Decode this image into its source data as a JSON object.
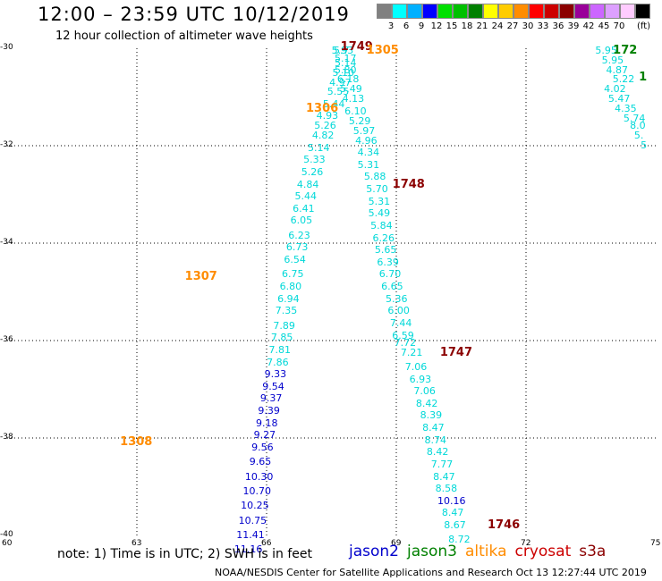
{
  "header": {
    "title": "12:00 – 23:59 UTC 10/12/2019",
    "subtitle": "12 hour collection of altimeter wave heights"
  },
  "colorbar": {
    "colors": [
      "#808080",
      "#00ffff",
      "#00b0ff",
      "#0000ff",
      "#00e000",
      "#00c000",
      "#008000",
      "#ffff00",
      "#ffcc00",
      "#ff8c00",
      "#ff0000",
      "#cc0000",
      "#8b0000",
      "#990099",
      "#cc66ff",
      "#dda0ff",
      "#ffccff",
      "#000000"
    ],
    "ticks": [
      "3",
      "6",
      "9",
      "12",
      "15",
      "18",
      "21",
      "24",
      "27",
      "30",
      "33",
      "36",
      "39",
      "42",
      "45",
      "70"
    ],
    "unit": "(ft)"
  },
  "map": {
    "lon_ticks": [
      "60",
      "63",
      "66",
      "69",
      "72",
      "75"
    ],
    "lat_ticks": [
      "-30",
      "-32",
      "-34",
      "-36",
      "-38",
      "-40"
    ],
    "lon_range": [
      60,
      75
    ],
    "lat_range": [
      -40,
      -30
    ],
    "grid": "dotted",
    "pass_labels": [
      {
        "text": "1749",
        "lon": 68.0,
        "lat": -29.98,
        "color": "#8b0000"
      },
      {
        "text": "1305",
        "lon": 68.6,
        "lat": -30.05,
        "color": "#ff8c00"
      },
      {
        "text": "1306",
        "lon": 67.2,
        "lat": -31.25,
        "color": "#ff8c00"
      },
      {
        "text": "1748",
        "lon": 69.2,
        "lat": -32.8,
        "color": "#8b0000"
      },
      {
        "text": "1307",
        "lon": 64.4,
        "lat": -34.7,
        "color": "#ff8c00"
      },
      {
        "text": "1747",
        "lon": 70.3,
        "lat": -36.25,
        "color": "#8b0000"
      },
      {
        "text": "1308",
        "lon": 62.9,
        "lat": -38.1,
        "color": "#ff8c00"
      },
      {
        "text": "1746",
        "lon": 71.4,
        "lat": -39.8,
        "color": "#8b0000"
      },
      {
        "text": "172",
        "lon": 74.3,
        "lat": -30.05,
        "color": "#008000"
      },
      {
        "text": "1",
        "lon": 74.9,
        "lat": -30.6,
        "color": "#008000"
      }
    ],
    "swh_points": [
      {
        "v": "5.93",
        "lon": 67.75,
        "lat": -30.05,
        "color": "#00d8d8"
      },
      {
        "v": "5.7",
        "lon": 67.8,
        "lat": -30.05,
        "color": "#00d8d8"
      },
      {
        "v": "5.17",
        "lon": 67.82,
        "lat": -30.22,
        "color": "#00d8d8"
      },
      {
        "v": "5.14",
        "lon": 67.82,
        "lat": -30.32,
        "color": "#00d8d8"
      },
      {
        "v": "5.80",
        "lon": 67.82,
        "lat": -30.45,
        "color": "#00d8d8"
      },
      {
        "v": "5.10",
        "lon": 67.77,
        "lat": -30.52,
        "color": "#00d8d8"
      },
      {
        "v": "6.18",
        "lon": 67.88,
        "lat": -30.65,
        "color": "#00d8d8"
      },
      {
        "v": "4.97",
        "lon": 67.7,
        "lat": -30.72,
        "color": "#00d8d8"
      },
      {
        "v": "5.49",
        "lon": 67.95,
        "lat": -30.85,
        "color": "#00d8d8"
      },
      {
        "v": "5.55",
        "lon": 67.65,
        "lat": -30.9,
        "color": "#00d8d8"
      },
      {
        "v": "4.13",
        "lon": 68.0,
        "lat": -31.05,
        "color": "#00d8d8"
      },
      {
        "v": "5.44",
        "lon": 67.55,
        "lat": -31.15,
        "color": "#00d8d8"
      },
      {
        "v": "6.10",
        "lon": 68.05,
        "lat": -31.3,
        "color": "#00d8d8"
      },
      {
        "v": "4.93",
        "lon": 67.4,
        "lat": -31.4,
        "color": "#00d8d8"
      },
      {
        "v": "5.29",
        "lon": 68.15,
        "lat": -31.5,
        "color": "#00d8d8"
      },
      {
        "v": "5.26",
        "lon": 67.35,
        "lat": -31.6,
        "color": "#00d8d8"
      },
      {
        "v": "5.97",
        "lon": 68.25,
        "lat": -31.7,
        "color": "#00d8d8"
      },
      {
        "v": "4.82",
        "lon": 67.3,
        "lat": -31.8,
        "color": "#00d8d8"
      },
      {
        "v": "4.96",
        "lon": 68.3,
        "lat": -31.9,
        "color": "#00d8d8"
      },
      {
        "v": "5.14",
        "lon": 67.2,
        "lat": -32.05,
        "color": "#00d8d8"
      },
      {
        "v": "4.34",
        "lon": 68.35,
        "lat": -32.15,
        "color": "#00d8d8"
      },
      {
        "v": "5.33",
        "lon": 67.1,
        "lat": -32.3,
        "color": "#00d8d8"
      },
      {
        "v": "5.31",
        "lon": 68.35,
        "lat": -32.4,
        "color": "#00d8d8"
      },
      {
        "v": "5.26",
        "lon": 67.05,
        "lat": -32.55,
        "color": "#00d8d8"
      },
      {
        "v": "5.88",
        "lon": 68.5,
        "lat": -32.65,
        "color": "#00d8d8"
      },
      {
        "v": "4.84",
        "lon": 66.95,
        "lat": -32.8,
        "color": "#00d8d8"
      },
      {
        "v": "5.70",
        "lon": 68.55,
        "lat": -32.9,
        "color": "#00d8d8"
      },
      {
        "v": "5.44",
        "lon": 66.9,
        "lat": -33.05,
        "color": "#00d8d8"
      },
      {
        "v": "5.31",
        "lon": 68.6,
        "lat": -33.15,
        "color": "#00d8d8"
      },
      {
        "v": "6.41",
        "lon": 66.85,
        "lat": -33.3,
        "color": "#00d8d8"
      },
      {
        "v": "5.49",
        "lon": 68.6,
        "lat": -33.4,
        "color": "#00d8d8"
      },
      {
        "v": "6.05",
        "lon": 66.8,
        "lat": -33.55,
        "color": "#00d8d8"
      },
      {
        "v": "5.84",
        "lon": 68.65,
        "lat": -33.65,
        "color": "#00d8d8"
      },
      {
        "v": "6.23",
        "lon": 66.75,
        "lat": -33.85,
        "color": "#00d8d8"
      },
      {
        "v": "6.26",
        "lon": 68.7,
        "lat": -33.9,
        "color": "#00d8d8"
      },
      {
        "v": "6.73",
        "lon": 66.7,
        "lat": -34.1,
        "color": "#00d8d8"
      },
      {
        "v": "5.65",
        "lon": 68.75,
        "lat": -34.15,
        "color": "#00d8d8"
      },
      {
        "v": "6.54",
        "lon": 66.65,
        "lat": -34.35,
        "color": "#00d8d8"
      },
      {
        "v": "6.39",
        "lon": 68.8,
        "lat": -34.4,
        "color": "#00d8d8"
      },
      {
        "v": "6.75",
        "lon": 66.6,
        "lat": -34.65,
        "color": "#00d8d8"
      },
      {
        "v": "6.70",
        "lon": 68.85,
        "lat": -34.65,
        "color": "#00d8d8"
      },
      {
        "v": "6.80",
        "lon": 66.55,
        "lat": -34.9,
        "color": "#00d8d8"
      },
      {
        "v": "6.65",
        "lon": 68.9,
        "lat": -34.9,
        "color": "#00d8d8"
      },
      {
        "v": "6.94",
        "lon": 66.5,
        "lat": -35.15,
        "color": "#00d8d8"
      },
      {
        "v": "5.36",
        "lon": 69.0,
        "lat": -35.15,
        "color": "#00d8d8"
      },
      {
        "v": "7.35",
        "lon": 66.45,
        "lat": -35.4,
        "color": "#00d8d8"
      },
      {
        "v": "6.00",
        "lon": 69.05,
        "lat": -35.4,
        "color": "#00d8d8"
      },
      {
        "v": "7.89",
        "lon": 66.4,
        "lat": -35.7,
        "color": "#00d8d8"
      },
      {
        "v": "7.44",
        "lon": 69.1,
        "lat": -35.65,
        "color": "#00d8d8"
      },
      {
        "v": "7.85",
        "lon": 66.35,
        "lat": -35.95,
        "color": "#00d8d8"
      },
      {
        "v": "6.59",
        "lon": 69.15,
        "lat": -35.9,
        "color": "#00d8d8"
      },
      {
        "v": "7.81",
        "lon": 66.3,
        "lat": -36.2,
        "color": "#00d8d8"
      },
      {
        "v": "7.72",
        "lon": 69.2,
        "lat": -36.05,
        "color": "#00d8d8"
      },
      {
        "v": "7.86",
        "lon": 66.25,
        "lat": -36.45,
        "color": "#00d8d8"
      },
      {
        "v": "7.21",
        "lon": 69.35,
        "lat": -36.25,
        "color": "#00d8d8"
      },
      {
        "v": "9.33",
        "lon": 66.2,
        "lat": -36.7,
        "color": "#0000cc"
      },
      {
        "v": "7.06",
        "lon": 69.45,
        "lat": -36.55,
        "color": "#00d8d8"
      },
      {
        "v": "9.54",
        "lon": 66.15,
        "lat": -36.95,
        "color": "#0000cc"
      },
      {
        "v": "6.93",
        "lon": 69.55,
        "lat": -36.8,
        "color": "#00d8d8"
      },
      {
        "v": "9.37",
        "lon": 66.1,
        "lat": -37.2,
        "color": "#0000cc"
      },
      {
        "v": "7.06",
        "lon": 69.65,
        "lat": -37.05,
        "color": "#00d8d8"
      },
      {
        "v": "9.39",
        "lon": 66.05,
        "lat": -37.45,
        "color": "#0000cc"
      },
      {
        "v": "8.42",
        "lon": 69.7,
        "lat": -37.3,
        "color": "#00d8d8"
      },
      {
        "v": "9.18",
        "lon": 66.0,
        "lat": -37.7,
        "color": "#0000cc"
      },
      {
        "v": "8.39",
        "lon": 69.8,
        "lat": -37.55,
        "color": "#00d8d8"
      },
      {
        "v": "9.27",
        "lon": 65.95,
        "lat": -37.95,
        "color": "#0000cc"
      },
      {
        "v": "8.47",
        "lon": 69.85,
        "lat": -37.8,
        "color": "#00d8d8"
      },
      {
        "v": "9.56",
        "lon": 65.9,
        "lat": -38.2,
        "color": "#0000cc"
      },
      {
        "v": "8.74",
        "lon": 69.9,
        "lat": -38.05,
        "color": "#00d8d8"
      },
      {
        "v": "9.65",
        "lon": 65.85,
        "lat": -38.5,
        "color": "#0000cc"
      },
      {
        "v": "8.42",
        "lon": 69.95,
        "lat": -38.3,
        "color": "#00d8d8"
      },
      {
        "v": "10.30",
        "lon": 65.75,
        "lat": -38.8,
        "color": "#0000cc"
      },
      {
        "v": "7.77",
        "lon": 70.05,
        "lat": -38.55,
        "color": "#00d8d8"
      },
      {
        "v": "10.70",
        "lon": 65.7,
        "lat": -39.1,
        "color": "#0000cc"
      },
      {
        "v": "8.47",
        "lon": 70.1,
        "lat": -38.8,
        "color": "#00d8d8"
      },
      {
        "v": "10.25",
        "lon": 65.65,
        "lat": -39.4,
        "color": "#0000cc"
      },
      {
        "v": "8.58",
        "lon": 70.15,
        "lat": -39.05,
        "color": "#00d8d8"
      },
      {
        "v": "10.75",
        "lon": 65.6,
        "lat": -39.7,
        "color": "#0000cc"
      },
      {
        "v": "10.16",
        "lon": 70.2,
        "lat": -39.3,
        "color": "#0000cc"
      },
      {
        "v": "11.41",
        "lon": 65.55,
        "lat": -40.0,
        "color": "#0000cc"
      },
      {
        "v": "8.47",
        "lon": 70.3,
        "lat": -39.55,
        "color": "#00d8d8"
      },
      {
        "v": "11.16",
        "lon": 65.5,
        "lat": -40.3,
        "color": "#0000cc"
      },
      {
        "v": "8.67",
        "lon": 70.35,
        "lat": -39.8,
        "color": "#00d8d8"
      },
      {
        "v": "8.72",
        "lon": 70.45,
        "lat": -40.1,
        "color": "#00d8d8"
      },
      {
        "v": "5.95",
        "lon": 73.85,
        "lat": -30.05,
        "color": "#00d8d8"
      },
      {
        "v": "5.95",
        "lon": 74.0,
        "lat": -30.25,
        "color": "#00d8d8"
      },
      {
        "v": "4.87",
        "lon": 74.1,
        "lat": -30.45,
        "color": "#00d8d8"
      },
      {
        "v": "5.22",
        "lon": 74.25,
        "lat": -30.65,
        "color": "#00d8d8"
      },
      {
        "v": "4.02",
        "lon": 74.05,
        "lat": -30.85,
        "color": "#00d8d8"
      },
      {
        "v": "5.47",
        "lon": 74.15,
        "lat": -31.05,
        "color": "#00d8d8"
      },
      {
        "v": "4.35",
        "lon": 74.3,
        "lat": -31.25,
        "color": "#00d8d8"
      },
      {
        "v": "5.74",
        "lon": 74.5,
        "lat": -31.45,
        "color": "#00d8d8"
      },
      {
        "v": "8.0",
        "lon": 74.65,
        "lat": -31.6,
        "color": "#00d8d8"
      },
      {
        "v": "5.",
        "lon": 74.75,
        "lat": -31.8,
        "color": "#00d8d8"
      },
      {
        "v": "5",
        "lon": 74.9,
        "lat": -32.0,
        "color": "#00d8d8"
      }
    ]
  },
  "note": "note: 1) Time is in UTC; 2) SWH is in feet",
  "legend": [
    {
      "label": "jason2",
      "color": "#0000cc"
    },
    {
      "label": "jason3",
      "color": "#008000"
    },
    {
      "label": "altika",
      "color": "#ff8c00"
    },
    {
      "label": "cryosat",
      "color": "#cc0000"
    },
    {
      "label": "s3a",
      "color": "#8b0000"
    }
  ],
  "credit": "NOAA/NESDIS Center for Satellite Applications and Research     Oct 13 12:27:44 UTC 2019"
}
